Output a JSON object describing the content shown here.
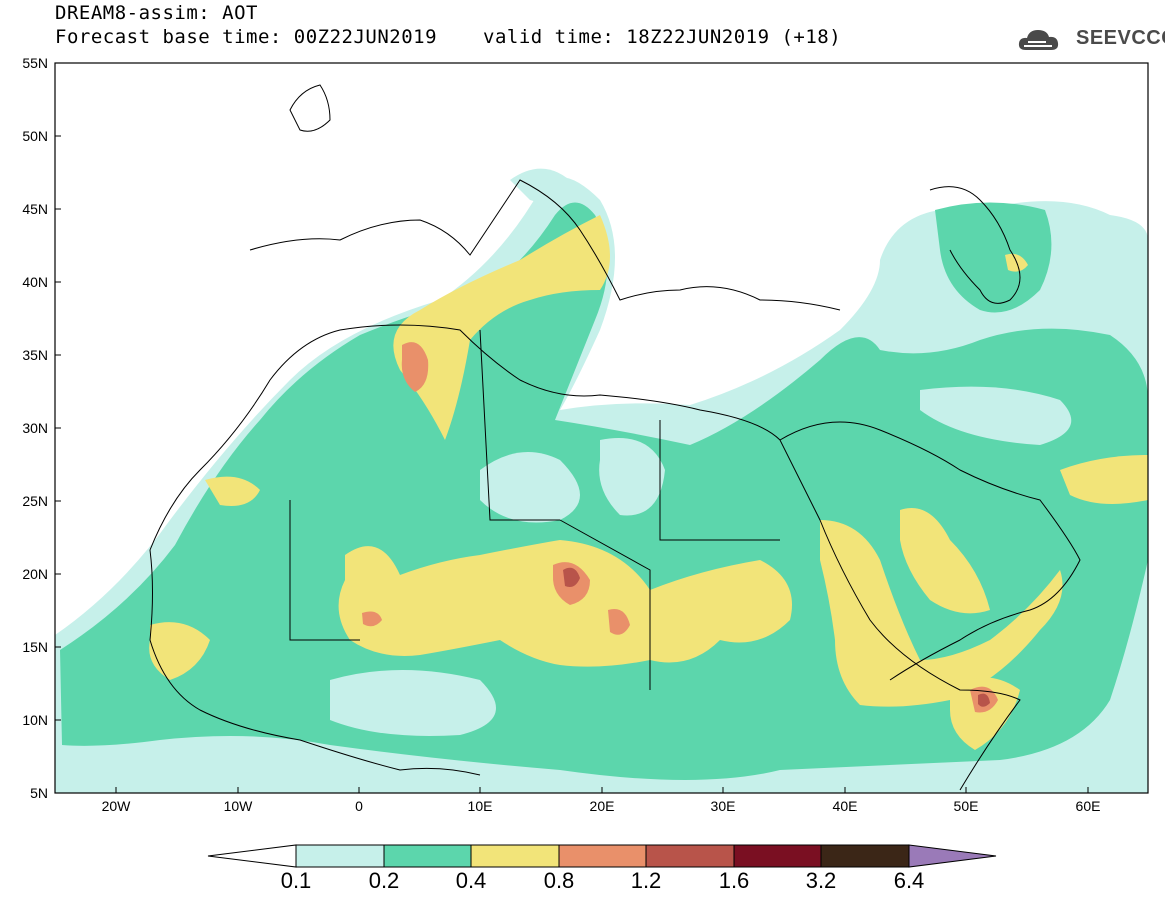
{
  "header": {
    "title": "DREAM8-assim: AOT",
    "base_time": "Forecast base time: 00Z22JUN2019",
    "valid_time": "valid time: 18Z22JUN2019 (+18)"
  },
  "logo": {
    "text": "SEEVCCC"
  },
  "axes": {
    "lat_labels": [
      "55N",
      "50N",
      "45N",
      "40N",
      "35N",
      "30N",
      "25N",
      "20N",
      "15N",
      "10N",
      "5N"
    ],
    "lon_labels": [
      "20W",
      "10W",
      "0",
      "10E",
      "20E",
      "30E",
      "40E",
      "50E",
      "60E"
    ]
  },
  "colorbar": {
    "labels": [
      "0.1",
      "0.2",
      "0.4",
      "0.8",
      "1.2",
      "1.6",
      "3.2",
      "6.4"
    ],
    "colors": [
      "#c6f0ea",
      "#5cd6ac",
      "#f2e479",
      "#e9906a",
      "#b8544a",
      "#7a0f22",
      "#3b2617",
      "#9a7ab8"
    ]
  },
  "colors": {
    "aot_0_1": "#c6f0ea",
    "aot_0_2": "#5cd6ac",
    "aot_0_4": "#f2e479",
    "aot_0_8": "#e9906a",
    "aot_1_2": "#b8544a",
    "coastline": "#000000"
  }
}
